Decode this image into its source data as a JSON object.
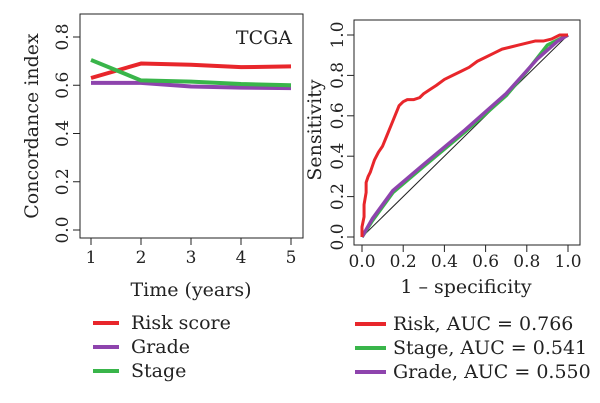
{
  "colors": {
    "risk": "#e8262b",
    "grade": "#8e44ad",
    "stage": "#39b54a",
    "axis": "#222222",
    "diagonal": "#222222"
  },
  "chart_data": [
    {
      "type": "line",
      "panel_label": "TCGA",
      "xlabel": "Time (years)",
      "ylabel": "Concordance index",
      "x": [
        1,
        2,
        3,
        4,
        5
      ],
      "xticks": [
        "1",
        "2",
        "3",
        "4",
        "5"
      ],
      "yticks": [
        "0.0",
        "0.2",
        "0.4",
        "0.6",
        "0.8"
      ],
      "xlim": [
        1,
        5
      ],
      "ylim": [
        0,
        0.8
      ],
      "series": [
        {
          "name": "Risk score",
          "color_key": "risk",
          "values": [
            0.63,
            0.69,
            0.685,
            0.675,
            0.678
          ]
        },
        {
          "name": "Grade",
          "color_key": "grade",
          "values": [
            0.61,
            0.61,
            0.595,
            0.59,
            0.588
          ]
        },
        {
          "name": "Stage",
          "color_key": "stage",
          "values": [
            0.705,
            0.62,
            0.615,
            0.605,
            0.6
          ]
        }
      ],
      "grid": false,
      "legend_position": "bottom"
    },
    {
      "type": "line",
      "xlabel": "1 – specificity",
      "ylabel": "Sensitivity",
      "xticks": [
        "0.0",
        "0.2",
        "0.4",
        "0.6",
        "0.8",
        "1.0"
      ],
      "yticks": [
        "0.0",
        "0.2",
        "0.4",
        "0.6",
        "0.8",
        "1.0"
      ],
      "xlim": [
        0,
        1
      ],
      "ylim": [
        0,
        1
      ],
      "diagonal": true,
      "series": [
        {
          "name": "Risk, AUC = 0.766",
          "color_key": "risk",
          "auc": 0.766,
          "x": [
            0.0,
            0.0,
            0.01,
            0.01,
            0.02,
            0.02,
            0.03,
            0.04,
            0.05,
            0.06,
            0.07,
            0.08,
            0.1,
            0.12,
            0.14,
            0.16,
            0.18,
            0.2,
            0.22,
            0.25,
            0.28,
            0.3,
            0.33,
            0.36,
            0.4,
            0.44,
            0.48,
            0.52,
            0.56,
            0.6,
            0.64,
            0.68,
            0.72,
            0.76,
            0.8,
            0.84,
            0.88,
            0.92,
            0.96,
            0.99,
            1.0
          ],
          "y": [
            0.0,
            0.05,
            0.1,
            0.16,
            0.22,
            0.27,
            0.3,
            0.32,
            0.35,
            0.38,
            0.4,
            0.42,
            0.45,
            0.5,
            0.55,
            0.6,
            0.65,
            0.67,
            0.68,
            0.68,
            0.69,
            0.71,
            0.73,
            0.75,
            0.78,
            0.8,
            0.82,
            0.84,
            0.87,
            0.89,
            0.91,
            0.93,
            0.94,
            0.95,
            0.96,
            0.97,
            0.97,
            0.98,
            1.0,
            1.0,
            1.0
          ]
        },
        {
          "name": "Stage, AUC = 0.541",
          "color_key": "stage",
          "auc": 0.541,
          "x": [
            0.0,
            0.05,
            0.1,
            0.15,
            0.3,
            0.5,
            0.7,
            0.8,
            0.9,
            1.0
          ],
          "y": [
            0.0,
            0.08,
            0.15,
            0.22,
            0.35,
            0.52,
            0.7,
            0.82,
            0.95,
            1.0
          ]
        },
        {
          "name": "Grade, AUC = 0.550",
          "color_key": "grade",
          "auc": 0.55,
          "x": [
            0.0,
            0.05,
            0.1,
            0.15,
            0.3,
            0.5,
            0.7,
            0.85,
            0.95,
            1.0
          ],
          "y": [
            0.0,
            0.09,
            0.16,
            0.23,
            0.36,
            0.53,
            0.71,
            0.88,
            0.97,
            1.0
          ]
        }
      ],
      "grid": false,
      "legend_position": "bottom"
    }
  ]
}
